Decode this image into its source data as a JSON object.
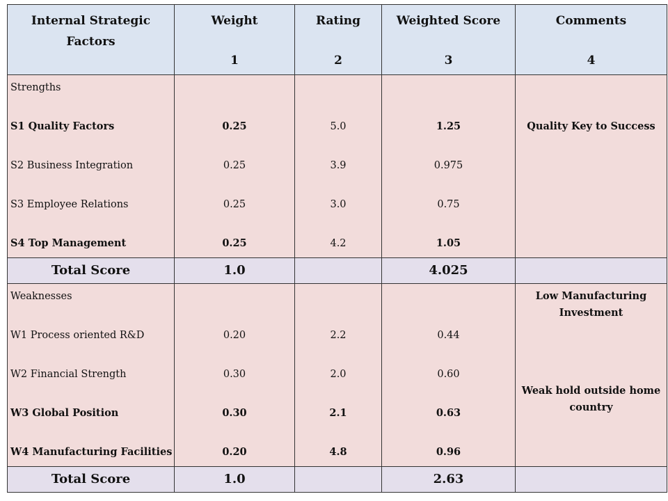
{
  "header": {
    "col1": {
      "line1": "Internal Strategic",
      "line2": "Factors"
    },
    "col2": {
      "title": "Weight",
      "num": "1"
    },
    "col3": {
      "title": "Rating",
      "num": "2"
    },
    "col4": {
      "title": "Weighted Score",
      "num": "3"
    },
    "col5": {
      "title": "Comments",
      "num": "4"
    }
  },
  "strengths": {
    "label": "Strengths",
    "rows": [
      {
        "factor": "S1  Quality Factors",
        "weight": "0.25",
        "rating": "5.0",
        "score": "1.25"
      },
      {
        "factor": "S2 Business Integration",
        "weight": "0.25",
        "rating": "3.9",
        "score": "0.975"
      },
      {
        "factor": "S3 Employee Relations",
        "weight": "0.25",
        "rating": "3.0",
        "score": "0.75"
      },
      {
        "factor": "S4 Top  Management",
        "weight": "0.25",
        "rating": "4.2",
        "score": "1.05"
      }
    ],
    "comment": "Quality Key to Success",
    "total": {
      "label": "Total Score",
      "weight": "1.0",
      "score": "4.025"
    }
  },
  "weaknesses": {
    "label": "Weaknesses",
    "rows": [
      {
        "factor": "W1 Process oriented R&D",
        "weight": "0.20",
        "rating": "2.2",
        "score": "0.44"
      },
      {
        "factor": "W2 Financial Strength",
        "weight": "0.30",
        "rating": "2.0",
        "score": "0.60"
      },
      {
        "factor": "W3 Global Position",
        "weight": "0.30",
        "rating": "2.1",
        "score": "0.63"
      },
      {
        "factor": "W4 Manufacturing Facilities",
        "weight": "0.20",
        "rating": "4.8",
        "score": "0.96"
      }
    ],
    "comment1": {
      "line1": "Low Manufacturing",
      "line2": "Investment"
    },
    "comment2": {
      "line1": "Weak hold outside home",
      "line2": "country"
    },
    "total": {
      "label": "Total Score",
      "weight": "1.0",
      "score": "2.63"
    }
  }
}
